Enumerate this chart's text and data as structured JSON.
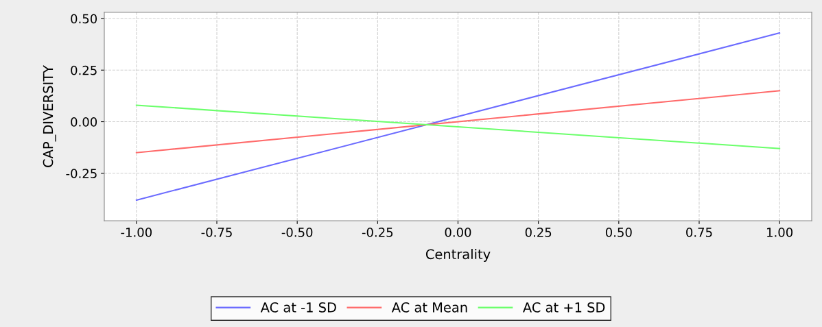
{
  "chart_data": {
    "type": "line",
    "xlabel": "Centrality",
    "ylabel": "CAP_DIVERSITY",
    "x": [
      -1.0,
      1.0
    ],
    "series": [
      {
        "name": "AC at -1 SD",
        "color": "#6b6bff",
        "values": [
          -0.38,
          0.43
        ]
      },
      {
        "name": "AC at Mean",
        "color": "#ff6b6b",
        "values": [
          -0.15,
          0.15
        ]
      },
      {
        "name": "AC at +1 SD",
        "color": "#6bff6b",
        "values": [
          0.08,
          -0.13
        ]
      }
    ],
    "xlim": [
      -1.1,
      1.1
    ],
    "ylim": [
      -0.48,
      0.53
    ],
    "xticks": [
      {
        "value": -1,
        "label": "-1.00"
      },
      {
        "value": -0.75,
        "label": "-0.75"
      },
      {
        "value": -0.5,
        "label": "-0.50"
      },
      {
        "value": -0.25,
        "label": "-0.25"
      },
      {
        "value": 0,
        "label": "0.00"
      },
      {
        "value": 0.25,
        "label": "0.25"
      },
      {
        "value": 0.5,
        "label": "0.50"
      },
      {
        "value": 0.75,
        "label": "0.75"
      },
      {
        "value": 1,
        "label": "1.00"
      }
    ],
    "yticks": [
      {
        "value": -0.25,
        "label": "-0.25"
      },
      {
        "value": 0,
        "label": "0.00"
      },
      {
        "value": 0.25,
        "label": "0.25"
      },
      {
        "value": 0.5,
        "label": "0.50"
      }
    ],
    "grid": true,
    "legend": "bottom",
    "marker": "none",
    "line_style": "solid"
  }
}
